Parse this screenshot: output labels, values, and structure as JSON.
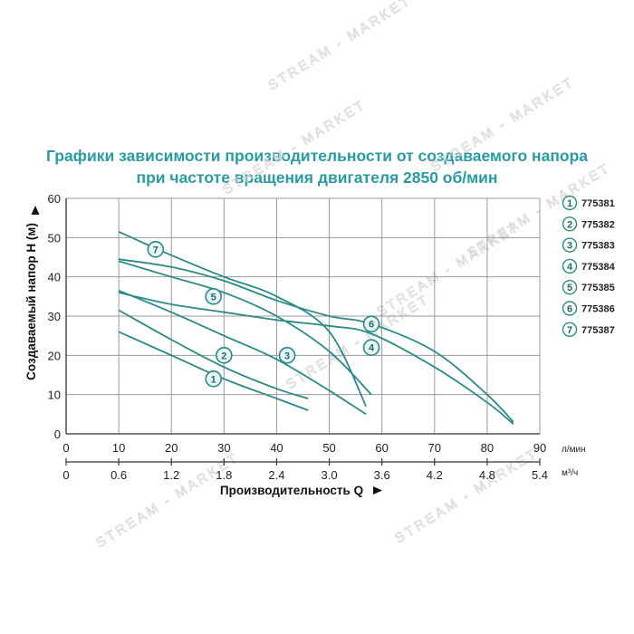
{
  "title_line1": "Графики зависимости производительности от создаваемого напора",
  "title_line2": "при частоте вращения двигателя 2850 об/мин",
  "watermark": "STREAM - MARKET",
  "colors": {
    "curve": "#2a8a86",
    "title": "#2a9aa3",
    "grid": "#9a9a9a",
    "marker_fill": "#e8f4f4"
  },
  "chart_data": {
    "type": "line",
    "ylabel": "Создаваемый напор H (м)",
    "xlabel": "Производительность Q",
    "x_unit": "л/мин",
    "x2_unit": "м³/ч",
    "ylim": [
      0,
      60
    ],
    "xlim": [
      0,
      90
    ],
    "y_ticks": [
      "0",
      "10",
      "20",
      "30",
      "40",
      "50",
      "60"
    ],
    "x_ticks": [
      "0",
      "10",
      "20",
      "30",
      "40",
      "50",
      "60",
      "70",
      "80",
      "90"
    ],
    "x2_ticks": [
      "0",
      "0.6",
      "1.2",
      "1.8",
      "2.4",
      "3.0",
      "3.6",
      "4.2",
      "4.8",
      "5.4"
    ],
    "grid": true,
    "legend_position": "right",
    "series": [
      {
        "name": "775381",
        "label": "1",
        "x": [
          10,
          20,
          30,
          40,
          46
        ],
        "y": [
          26,
          20,
          14,
          9,
          6
        ],
        "marker": [
          28,
          14
        ]
      },
      {
        "name": "775382",
        "label": "2",
        "x": [
          10,
          20,
          30,
          40,
          46
        ],
        "y": [
          31.5,
          24,
          17,
          11.5,
          9
        ],
        "marker": [
          30,
          20
        ]
      },
      {
        "name": "775383",
        "label": "3",
        "x": [
          10,
          20,
          30,
          40,
          50,
          57
        ],
        "y": [
          36.5,
          31,
          25,
          19,
          11,
          5
        ],
        "marker": [
          42,
          20
        ]
      },
      {
        "name": "775384",
        "label": "4",
        "x": [
          10,
          20,
          30,
          40,
          50,
          58,
          70,
          80,
          85
        ],
        "y": [
          36,
          33,
          31,
          29,
          27.5,
          25.5,
          17,
          8,
          2.5
        ],
        "marker": [
          58,
          22
        ]
      },
      {
        "name": "775385",
        "label": "5",
        "x": [
          10,
          20,
          30,
          40,
          50,
          58
        ],
        "y": [
          44,
          40,
          36,
          30,
          21,
          10
        ],
        "marker": [
          28,
          35
        ]
      },
      {
        "name": "775386",
        "label": "6",
        "x": [
          10,
          20,
          30,
          40,
          50,
          58,
          70,
          80,
          85
        ],
        "y": [
          44.5,
          42.5,
          39,
          34,
          30,
          28,
          21,
          10,
          3
        ],
        "marker": [
          58,
          28
        ]
      },
      {
        "name": "775387",
        "label": "7",
        "x": [
          10,
          20,
          30,
          40,
          50,
          57
        ],
        "y": [
          51.5,
          45.5,
          40,
          35,
          26,
          7
        ],
        "marker": [
          17,
          47
        ]
      }
    ]
  }
}
